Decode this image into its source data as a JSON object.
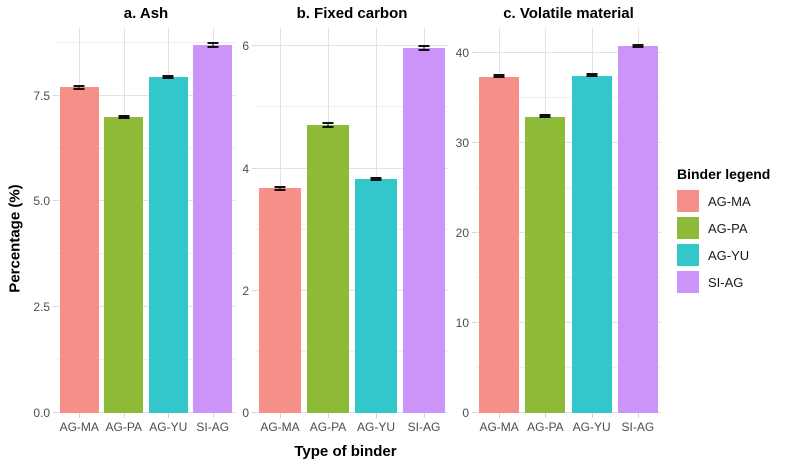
{
  "figure": {
    "y_axis_title": "Percentage (%)",
    "x_axis_title": "Type of binder",
    "legend": {
      "title": "Binder legend",
      "items": [
        {
          "label": "AG-MA",
          "color": "#f58f88"
        },
        {
          "label": "AG-PA",
          "color": "#8dbb38"
        },
        {
          "label": "AG-YU",
          "color": "#33c6cb"
        },
        {
          "label": "SI-AG",
          "color": "#cc93f8"
        }
      ]
    }
  },
  "chart_data": {
    "type": "bar",
    "categories": [
      "AG-MA",
      "AG-PA",
      "AG-YU",
      "SI-AG"
    ],
    "series_colors": [
      "#f58f88",
      "#8dbb38",
      "#33c6cb",
      "#cc93f8"
    ],
    "xlabel": "Type of binder",
    "ylabel": "Percentage (%)",
    "grid": "on",
    "legend_position": "right",
    "error_bar_color": "#111111",
    "panels": [
      {
        "label": "a. Ash",
        "values": [
          7.7,
          7.0,
          7.95,
          8.7
        ],
        "errors": [
          0.06,
          0.05,
          0.05,
          0.08
        ],
        "ytick_labels": [
          "0.0",
          "2.5",
          "5.0",
          "7.5"
        ],
        "ytick_values": [
          0,
          2.5,
          5,
          7.5
        ],
        "minor_ticks": [
          1.25,
          3.75,
          6.25,
          8.75
        ],
        "ylim": [
          0,
          9.1
        ]
      },
      {
        "label": "b. Fixed carbon",
        "values": [
          3.68,
          4.71,
          3.83,
          5.97
        ],
        "errors": [
          0.04,
          0.05,
          0.04,
          0.05
        ],
        "ytick_labels": [
          "0",
          "2",
          "4",
          "6"
        ],
        "ytick_values": [
          0,
          2,
          4,
          6
        ],
        "minor_ticks": [
          1,
          3,
          5
        ],
        "ylim": [
          0,
          6.3
        ]
      },
      {
        "label": "c. Volatile material",
        "values": [
          37.4,
          32.9,
          37.5,
          40.8
        ],
        "errors": [
          0.2,
          0.15,
          0.2,
          0.2
        ],
        "ytick_labels": [
          "0",
          "10",
          "20",
          "30",
          "40"
        ],
        "ytick_values": [
          0,
          10,
          20,
          30,
          40
        ],
        "minor_ticks": [
          5,
          15,
          25,
          35
        ],
        "ylim": [
          0,
          42.8
        ]
      }
    ]
  }
}
